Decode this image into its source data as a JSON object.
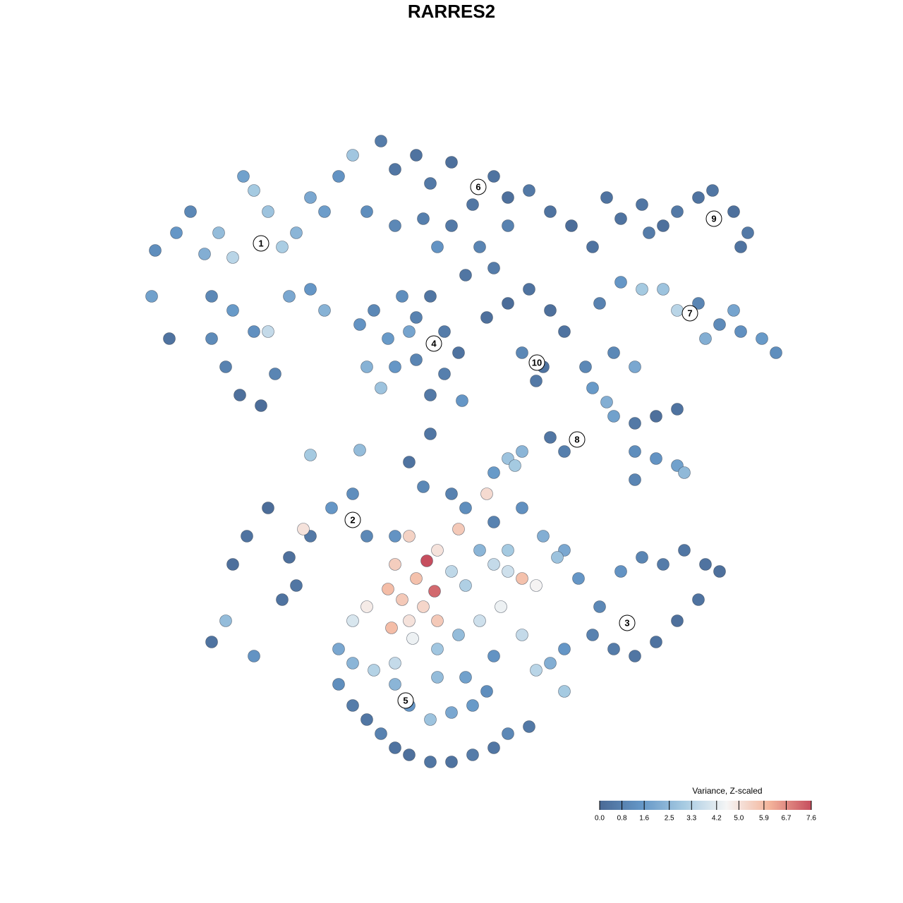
{
  "chart_data": {
    "type": "scatter",
    "title": "RARRES2",
    "x": [
      220,
      215,
      240,
      250,
      270,
      290,
      310,
      330,
      345,
      360,
      380,
      400,
      420,
      440,
      460,
      480,
      500,
      520,
      300,
      330,
      360,
      380,
      410,
      440,
      320,
      340,
      370,
      300,
      390,
      460,
      540,
      560,
      590,
      610,
      640,
      670,
      700,
      720,
      750,
      780,
      810,
      840,
      600,
      640,
      680,
      700,
      560,
      720,
      660,
      620,
      510,
      530,
      550,
      570,
      590,
      610,
      630,
      650,
      520,
      540,
      560,
      590,
      610,
      630,
      580,
      880,
      910,
      940,
      960,
      990,
      1010,
      1040,
      1060,
      1050,
      920,
      850,
      880,
      910,
      940,
      960,
      990,
      1020,
      1050,
      1080,
      1100,
      1000,
      1040,
      870,
      900,
      690,
      720,
      750,
      780,
      800,
      740,
      760,
      770,
      840,
      860,
      870,
      830,
      900,
      930,
      960,
      900,
      930,
      960,
      900,
      970,
      780,
      800,
      720,
      740,
      700,
      730,
      330,
      350,
      380,
      410,
      440,
      470,
      500,
      520,
      420,
      400,
      430,
      300,
      360,
      320,
      800,
      820,
      850,
      880,
      910,
      940,
      970,
      1000,
      1020,
      990,
      960,
      930,
      900,
      870,
      840,
      800,
      780,
      800,
      600,
      640,
      690,
      560,
      580,
      620,
      605,
      560,
      590,
      616,
      550,
      570,
      600,
      580,
      555,
      520,
      500,
      650,
      640,
      660,
      700,
      720,
      740,
      760,
      710,
      680,
      620,
      585,
      660,
      700,
      740,
      770,
      790,
      680,
      720,
      650,
      620,
      480,
      500,
      530,
      560,
      700,
      760,
      740,
      480,
      500,
      520,
      540,
      560,
      580,
      610,
      640,
      670,
      700,
      720,
      750,
      580,
      610,
      640,
      670,
      690,
      560,
      620,
      660,
      440,
      510,
      580,
      655,
      610,
      860
    ],
    "y": [
      925,
      860,
      800,
      950,
      980,
      920,
      950,
      915,
      1030,
      1010,
      980,
      930,
      950,
      1000,
      980,
      1030,
      1060,
      980,
      860,
      840,
      810,
      810,
      860,
      870,
      760,
      720,
      705,
      800,
      750,
      840,
      1080,
      1040,
      1060,
      1020,
      1050,
      990,
      1030,
      1000,
      1010,
      980,
      960,
      930,
      970,
      960,
      930,
      900,
      960,
      960,
      890,
      930,
      820,
      840,
      800,
      860,
      830,
      860,
      810,
      780,
      760,
      730,
      760,
      770,
      720,
      750,
      810,
      970,
      990,
      960,
      980,
      1000,
      1010,
      980,
      950,
      930,
      950,
      850,
      880,
      870,
      870,
      840,
      850,
      820,
      810,
      800,
      780,
      800,
      840,
      780,
      760,
      830,
      850,
      870,
      840,
      810,
      780,
      740,
      760,
      730,
      710,
      690,
      760,
      680,
      690,
      700,
      640,
      630,
      620,
      600,
      610,
      660,
      640,
      630,
      640,
      610,
      620,
      480,
      520,
      560,
      490,
      520,
      560,
      580,
      520,
      450,
      430,
      530,
      370,
      350,
      400,
      500,
      460,
      420,
      470,
      490,
      480,
      500,
      480,
      470,
      430,
      400,
      370,
      350,
      360,
      380,
      360,
      340,
      300,
      590,
      580,
      580,
      520,
      520,
      500,
      485,
      480,
      460,
      442,
      445,
      430,
      420,
      400,
      390,
      420,
      400,
      530,
      470,
      450,
      480,
      470,
      460,
      450,
      420,
      400,
      400,
      375,
      560,
      540,
      560,
      520,
      490,
      500,
      500,
      380,
      360,
      360,
      340,
      330,
      340,
      350,
      330,
      380,
      310,
      280,
      260,
      240,
      220,
      210,
      200,
      200,
      210,
      220,
      240,
      250,
      280,
      260,
      270,
      280,
      300,
      310,
      320,
      320,
      635,
      642,
      625,
      712,
      665,
      1000
    ],
    "values": [
      1.2,
      1.8,
      0.3,
      1.5,
      1.0,
      2.2,
      2.6,
      3.4,
      1.8,
      3.0,
      2.8,
      3.1,
      2.4,
      2.0,
      1.7,
      1.4,
      2.9,
      1.2,
      1.0,
      1.6,
      1.3,
      3.6,
      2.0,
      1.5,
      0.8,
      0.2,
      0.1,
      1.1,
      0.9,
      2.3,
      0.6,
      0.4,
      0.3,
      0.5,
      0.2,
      0.4,
      0.3,
      0.2,
      0.5,
      0.3,
      0.1,
      0.3,
      0.7,
      0.5,
      0.9,
      0.6,
      1.0,
      0.8,
      0.4,
      1.4,
      1.4,
      1.0,
      1.6,
      1.2,
      0.8,
      0.4,
      0.6,
      0.3,
      2.3,
      2.8,
      1.5,
      0.9,
      0.5,
      0.7,
      1.9,
      0.3,
      0.4,
      0.2,
      0.5,
      0.3,
      0.4,
      0.2,
      0.5,
      0.3,
      0.6,
      0.8,
      1.5,
      3.0,
      2.8,
      3.4,
      0.9,
      1.1,
      1.3,
      1.6,
      1.2,
      2.2,
      1.9,
      1.0,
      2.0,
      0.2,
      0.1,
      0.3,
      0.2,
      0.3,
      1.0,
      0.5,
      0.3,
      1.6,
      2.2,
      1.8,
      1.0,
      0.5,
      0.2,
      0.3,
      1.2,
      1.4,
      1.8,
      0.9,
      2.5,
      0.4,
      0.7,
      2.8,
      2.4,
      1.6,
      3.0,
      0.2,
      0.3,
      0.1,
      0.2,
      0.5,
      1.5,
      1.2,
      1.0,
      0.4,
      0.3,
      5.0,
      0.3,
      1.4,
      2.6,
      2.0,
      1.5,
      1.0,
      1.4,
      0.9,
      0.6,
      0.4,
      0.3,
      0.2,
      0.3,
      0.2,
      0.3,
      0.4,
      0.6,
      0.8,
      1.5,
      2.2,
      3.0,
      1.0,
      0.8,
      5.2,
      1.4,
      5.4,
      5.0,
      7.6,
      5.5,
      5.8,
      7.2,
      5.9,
      5.6,
      5.3,
      5.0,
      5.9,
      4.8,
      4.0,
      5.6,
      3.5,
      3.2,
      3.6,
      3.8,
      5.8,
      4.6,
      4.4,
      3.8,
      5.6,
      4.4,
      1.2,
      0.8,
      1.3,
      2.2,
      2.8,
      2.4,
      3.0,
      2.6,
      2.9,
      2.0,
      2.4,
      3.3,
      3.6,
      1.4,
      3.4,
      3.6,
      1.2,
      0.6,
      0.4,
      0.8,
      0.3,
      0.2,
      0.4,
      0.3,
      0.6,
      0.4,
      1.0,
      0.5,
      1.5,
      2.8,
      2.0,
      1.6,
      1.2,
      2.4,
      2.6,
      1.8,
      3.0,
      2.6,
      0.3,
      1.5,
      0.4,
      0.3
    ],
    "xlim": [
      0,
      1280
    ],
    "ylim": [
      0,
      1280
    ],
    "cluster_labels": [
      {
        "text": "1",
        "x": 370,
        "y": 935
      },
      {
        "text": "2",
        "x": 500,
        "y": 543
      },
      {
        "text": "3",
        "x": 889,
        "y": 397
      },
      {
        "text": "4",
        "x": 615,
        "y": 793
      },
      {
        "text": "5",
        "x": 575,
        "y": 287
      },
      {
        "text": "6",
        "x": 678,
        "y": 1015
      },
      {
        "text": "7",
        "x": 978,
        "y": 836
      },
      {
        "text": "8",
        "x": 818,
        "y": 657
      },
      {
        "text": "9",
        "x": 1012,
        "y": 970
      },
      {
        "text": "10",
        "x": 761,
        "y": 766
      }
    ],
    "colorbar": {
      "title": "Variance, Z-scaled",
      "lim": [
        0,
        7.6
      ],
      "colors": [
        "#4a6a96",
        "#6597c7",
        "#a7cbe2",
        "#f5f5f5",
        "#f4b59c",
        "#c64e5e"
      ],
      "ticks": [
        {
          "value": 0,
          "label": "0.0"
        },
        0.8,
        1.6,
        2.5,
        3.3,
        4.2,
        {
          "value": 5,
          "label": "5.0"
        },
        5.9,
        6.7,
        7.6
      ]
    }
  }
}
